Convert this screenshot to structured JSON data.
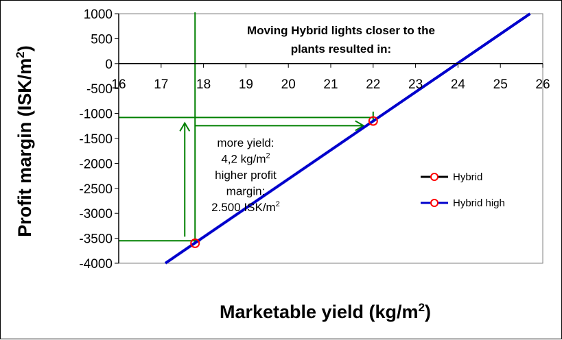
{
  "chart_data": {
    "type": "line",
    "title_lines": [
      "Moving Hybrid lights closer to the",
      "plants resulted in:"
    ],
    "xlabel": "Marketable yield (kg/m",
    "xlabel_sup": "2",
    "xlabel_end": ")",
    "ylabel": "Profit margin (ISK/m",
    "ylabel_sup": "2",
    "ylabel_end": ")",
    "xlim": [
      16,
      26
    ],
    "ylim": [
      -4000,
      1000
    ],
    "xticks": [
      "16",
      "17",
      "18",
      "19",
      "20",
      "21",
      "22",
      "23",
      "24",
      "25",
      "26"
    ],
    "yticks": [
      "1000",
      "500",
      "0",
      "-500",
      "-1000",
      "-1500",
      "-2000",
      "-2500",
      "-3000",
      "-3500",
      "-4000"
    ],
    "series": [
      {
        "name": "Hybrid",
        "color": "#000000",
        "marker": "circle-red",
        "points": [
          [
            17.8,
            -3600
          ],
          [
            22.0,
            -1150
          ]
        ]
      },
      {
        "name": "Hybrid high",
        "color": "#0000cc",
        "marker": "circle-red",
        "line_from": [
          17.1,
          -4000
        ],
        "line_to": [
          25.7,
          1000
        ]
      }
    ],
    "annotation_lines": [
      {
        "text": "more yield:"
      },
      {
        "text": "4,2 kg/m",
        "sup": "2"
      },
      {
        "text": "higher profit"
      },
      {
        "text": "margin:"
      },
      {
        "text": "2.500 ISK/m",
        "sup": "2"
      }
    ],
    "guides": {
      "color": "#008000",
      "x_low": 17.8,
      "x_high": 22.0,
      "y_low": -3550,
      "y_high": -1080
    },
    "legend_position": "right"
  }
}
